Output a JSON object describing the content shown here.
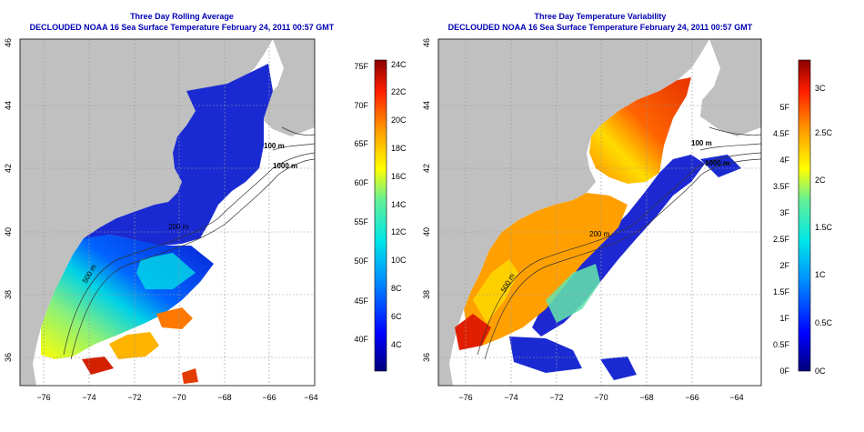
{
  "left_panel": {
    "title_line1": "Three Day Rolling Average",
    "title_line2": "DECLOUDED NOAA 16 Sea Surface Temperature February 24, 2011 00:57 GMT",
    "x_ticks": [
      "−76",
      "−74",
      "−72",
      "−70",
      "−68",
      "−66",
      "−64"
    ],
    "y_ticks": [
      "36",
      "38",
      "40",
      "42",
      "44",
      "46"
    ],
    "colorbar_f_labels": [
      "40F",
      "45F",
      "50F",
      "55F",
      "60F",
      "65F",
      "70F",
      "75F"
    ],
    "colorbar_c_labels": [
      "4C",
      "6C",
      "8C",
      "10C",
      "12C",
      "14C",
      "16C",
      "18C",
      "20C",
      "22C",
      "24C"
    ],
    "contour_labels": [
      "100 m",
      "1000 m",
      "200 m",
      "500 m"
    ]
  },
  "right_panel": {
    "title_line1": "Three Day Temperature Variability",
    "title_line2": "DECLOUDED NOAA 16 Sea Surface Temperature February 24, 2011 00:57 GMT",
    "x_ticks": [
      "−76",
      "−74",
      "−72",
      "−70",
      "−68",
      "−66",
      "−64"
    ],
    "y_ticks": [
      "36",
      "38",
      "40",
      "42",
      "44",
      "46"
    ],
    "colorbar_f_labels": [
      "0F",
      "0.5F",
      "1F",
      "1.5F",
      "2F",
      "2.5F",
      "3F",
      "3.5F",
      "4F",
      "4.5F",
      "5F"
    ],
    "colorbar_c_labels": [
      "0C",
      "0.5C",
      "1C",
      "1.5C",
      "2C",
      "2.5C",
      "3C"
    ],
    "contour_labels": [
      "100 m",
      "1000 m",
      "200 m",
      "500 m"
    ]
  },
  "colors": {
    "land": "#c0c0c0",
    "title": "#0000b4",
    "cold": "#1414c8",
    "warm": "#d22000"
  }
}
